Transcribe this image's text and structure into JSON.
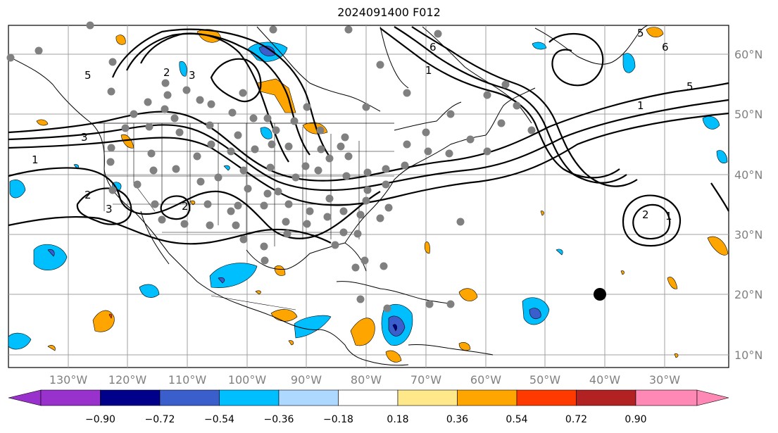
{
  "title": "2024091400 F012",
  "lat_labels": [
    "60°N",
    "50°N",
    "40°N",
    "30°N",
    "20°N",
    "10°N"
  ],
  "lon_labels": [
    "130°W",
    "120°W",
    "110°W",
    "100°W",
    "90°W",
    "80°W",
    "70°W",
    "60°W",
    "50°W",
    "40°W",
    "30°W"
  ],
  "colorbar": {
    "ticks": [
      "−0.90",
      "−0.72",
      "−0.54",
      "−0.36",
      "−0.18",
      "0.18",
      "0.36",
      "0.54",
      "0.72",
      "0.90"
    ],
    "colors": {
      "under": "#9932CC",
      "c1": "#00008B",
      "c2": "#3A5FCD",
      "c3": "#00BFFF",
      "c4": "#ADD8FF",
      "c5": "#FFFFFF",
      "c6": "#FFE88A",
      "c7": "#FFA500",
      "c8": "#FF3A00",
      "c9": "#B22222",
      "over": "#FF88B5"
    }
  },
  "contour_labels": [
    "5",
    "2",
    "3",
    "1",
    "2",
    "3",
    "2",
    "6",
    "1",
    "5",
    "1",
    "2",
    "1",
    "5",
    "6",
    "3"
  ],
  "storm_marker": "black-circle"
}
